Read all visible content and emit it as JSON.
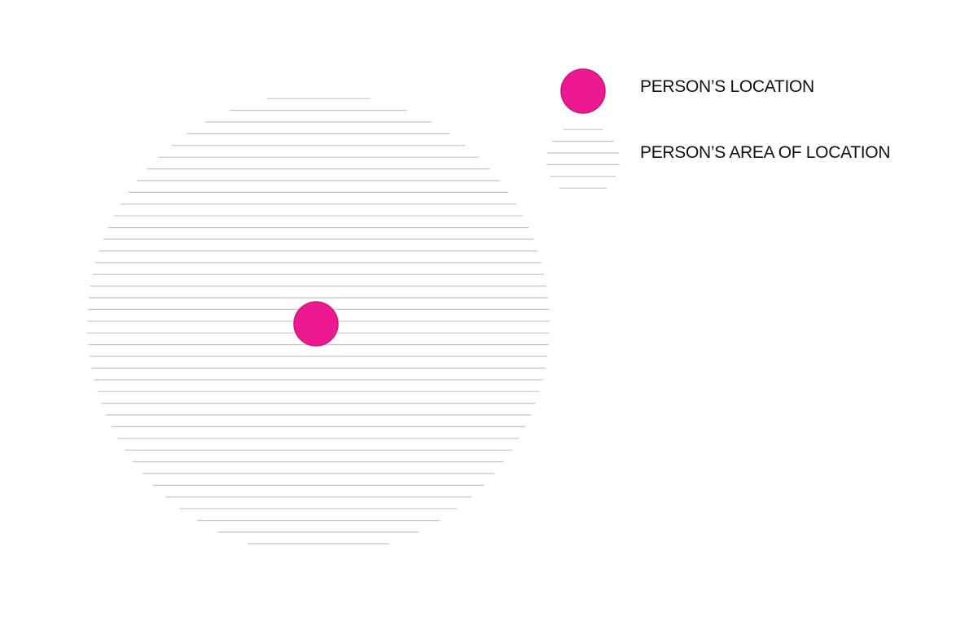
{
  "legend": {
    "location_label": "PERSON’S LOCATION",
    "area_label": "PERSON’S AREA OF LOCATION"
  },
  "colors": {
    "location_dot": "#ec1990",
    "location_dot_stroke": "#c9177e",
    "hatch_line": "#c4c4c4",
    "text": "#111111",
    "background": "#ffffff"
  },
  "icons": {
    "location": "pink-filled-circle",
    "area": "horizontal-hatched-circle"
  }
}
